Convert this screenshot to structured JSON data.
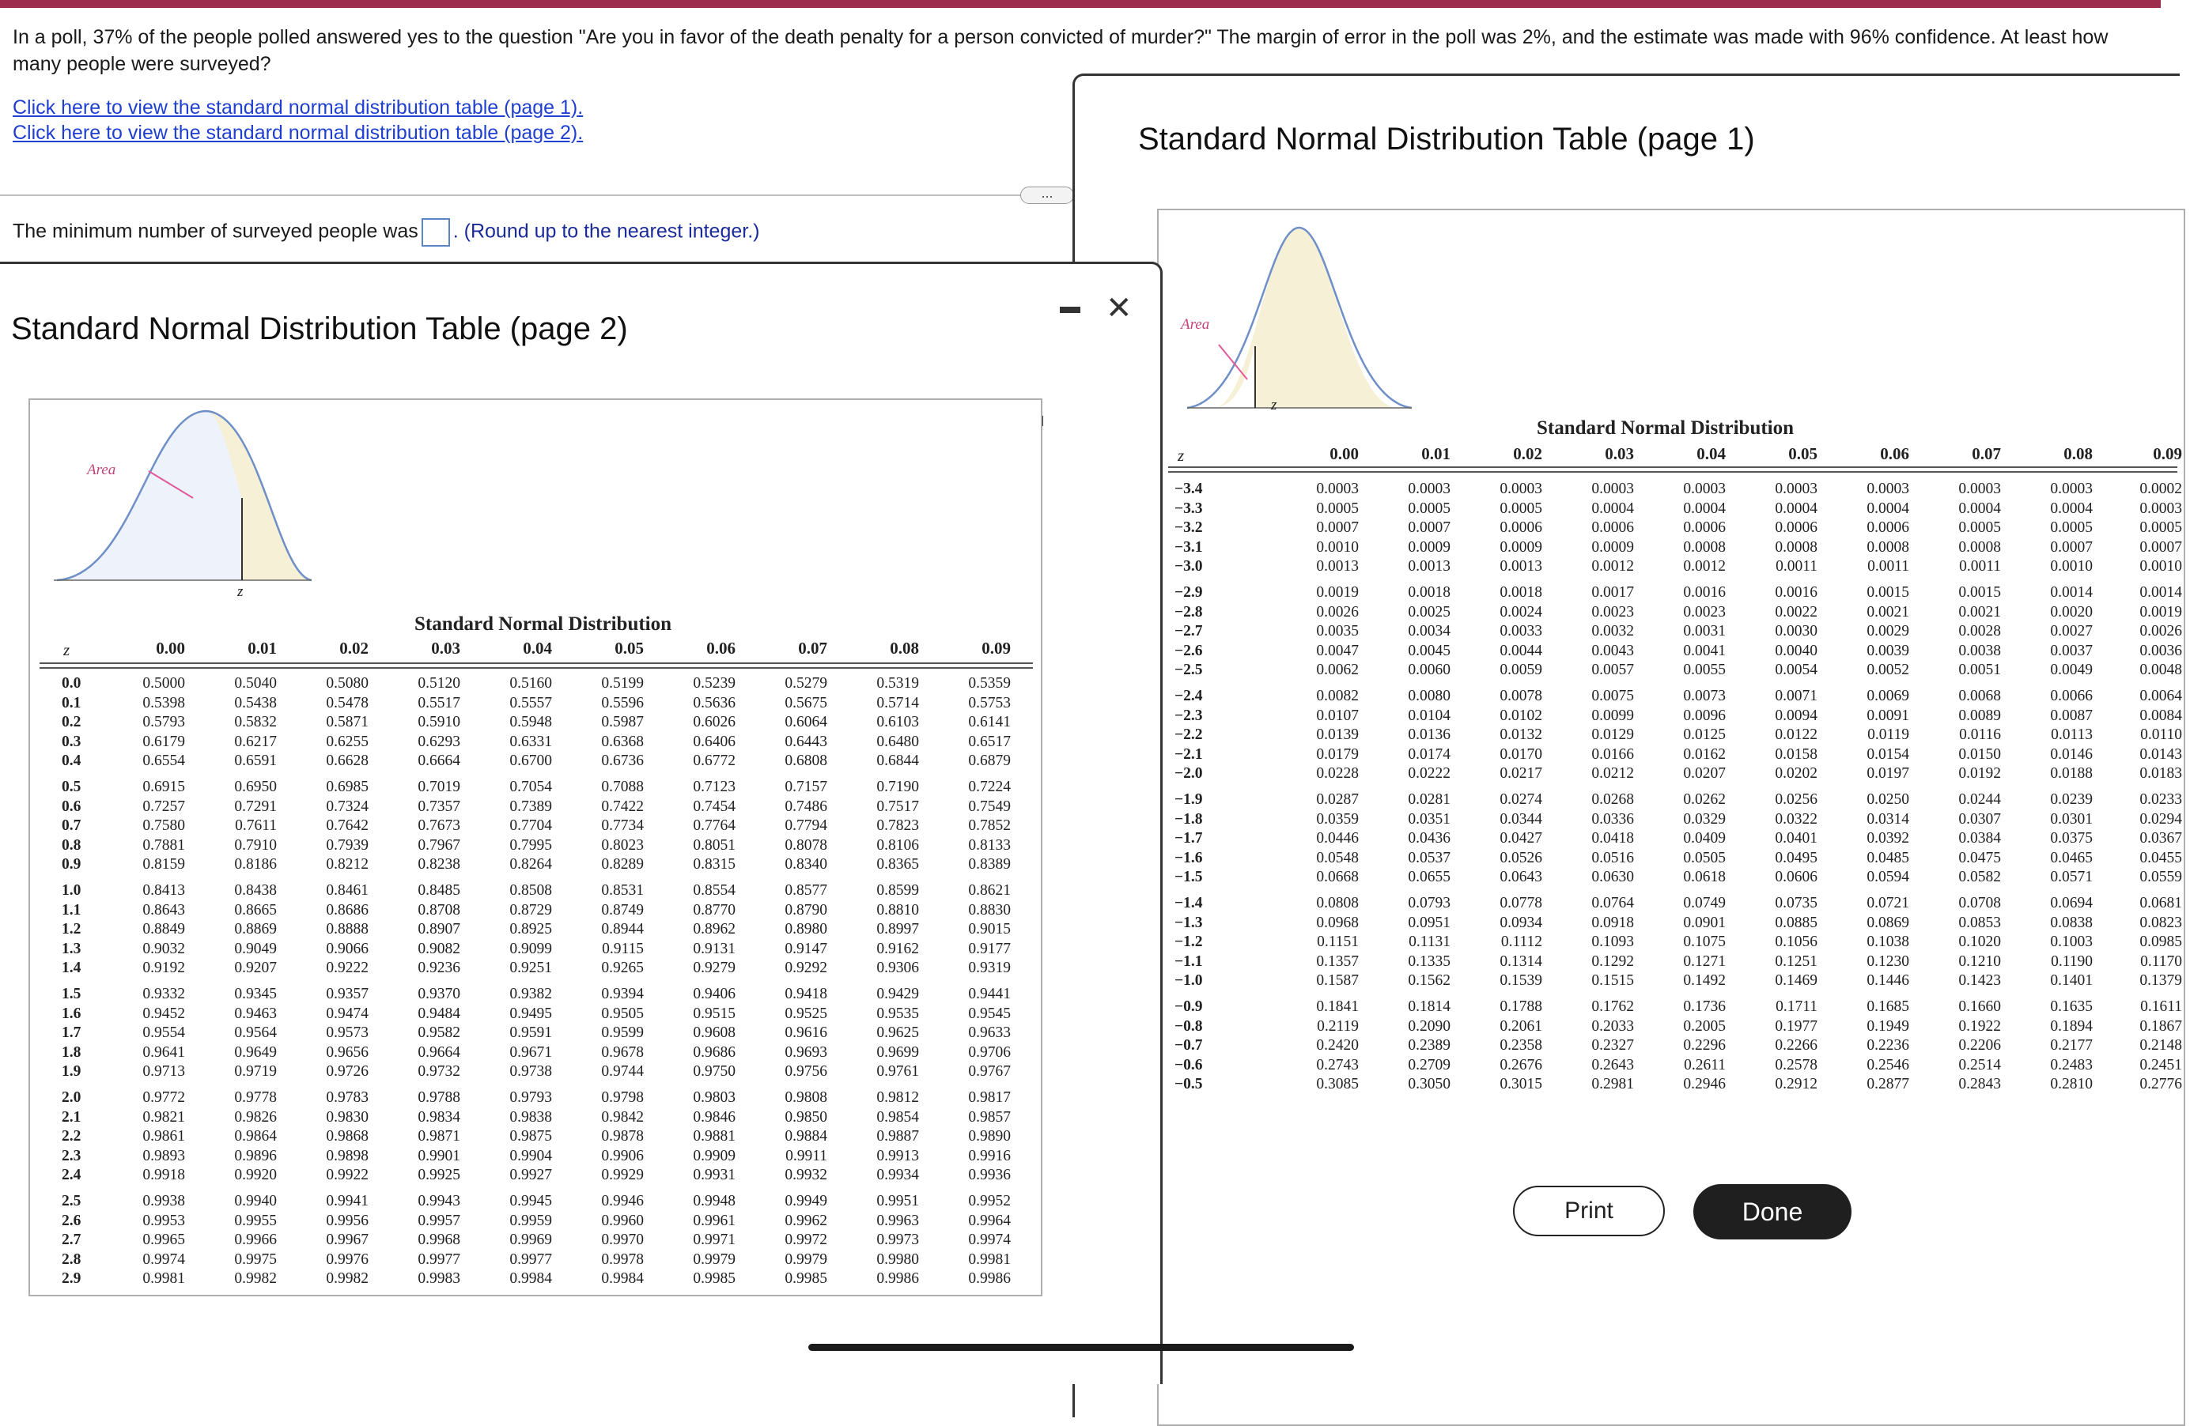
{
  "question": {
    "text": "In a poll, 37% of the people polled answered yes to the question \"Are you in favor of the death penalty for a person convicted of murder?\" The margin of error in the poll was 2%, and the estimate was made with 96% confidence. At least how many people were surveyed?",
    "link1": "Click here to view the standard normal distribution table (page 1).",
    "link2": "Click here to view the standard normal distribution table (page 2).",
    "more_label": "...",
    "answer_prefix": "The minimum number of surveyed people was",
    "answer_value": "",
    "answer_suffix": ". (Round up to the nearest integer.)"
  },
  "page1": {
    "window_title": "Standard Normal Distribution Table (page 1)",
    "table_title": "Standard Normal Distribution",
    "area_label": "Area",
    "z_label": "z",
    "col_headers": [
      "0.00",
      "0.01",
      "0.02",
      "0.03",
      "0.04",
      "0.05",
      "0.06",
      "0.07",
      "0.08",
      "0.09"
    ],
    "groups": [
      [
        {
          "z": "−3.4",
          "v": [
            "0.0003",
            "0.0003",
            "0.0003",
            "0.0003",
            "0.0003",
            "0.0003",
            "0.0003",
            "0.0003",
            "0.0003",
            "0.0002"
          ]
        },
        {
          "z": "−3.3",
          "v": [
            "0.0005",
            "0.0005",
            "0.0005",
            "0.0004",
            "0.0004",
            "0.0004",
            "0.0004",
            "0.0004",
            "0.0004",
            "0.0003"
          ]
        },
        {
          "z": "−3.2",
          "v": [
            "0.0007",
            "0.0007",
            "0.0006",
            "0.0006",
            "0.0006",
            "0.0006",
            "0.0006",
            "0.0005",
            "0.0005",
            "0.0005"
          ]
        },
        {
          "z": "−3.1",
          "v": [
            "0.0010",
            "0.0009",
            "0.0009",
            "0.0009",
            "0.0008",
            "0.0008",
            "0.0008",
            "0.0008",
            "0.0007",
            "0.0007"
          ]
        },
        {
          "z": "−3.0",
          "v": [
            "0.0013",
            "0.0013",
            "0.0013",
            "0.0012",
            "0.0012",
            "0.0011",
            "0.0011",
            "0.0011",
            "0.0010",
            "0.0010"
          ]
        }
      ],
      [
        {
          "z": "−2.9",
          "v": [
            "0.0019",
            "0.0018",
            "0.0018",
            "0.0017",
            "0.0016",
            "0.0016",
            "0.0015",
            "0.0015",
            "0.0014",
            "0.0014"
          ]
        },
        {
          "z": "−2.8",
          "v": [
            "0.0026",
            "0.0025",
            "0.0024",
            "0.0023",
            "0.0023",
            "0.0022",
            "0.0021",
            "0.0021",
            "0.0020",
            "0.0019"
          ]
        },
        {
          "z": "−2.7",
          "v": [
            "0.0035",
            "0.0034",
            "0.0033",
            "0.0032",
            "0.0031",
            "0.0030",
            "0.0029",
            "0.0028",
            "0.0027",
            "0.0026"
          ]
        },
        {
          "z": "−2.6",
          "v": [
            "0.0047",
            "0.0045",
            "0.0044",
            "0.0043",
            "0.0041",
            "0.0040",
            "0.0039",
            "0.0038",
            "0.0037",
            "0.0036"
          ]
        },
        {
          "z": "−2.5",
          "v": [
            "0.0062",
            "0.0060",
            "0.0059",
            "0.0057",
            "0.0055",
            "0.0054",
            "0.0052",
            "0.0051",
            "0.0049",
            "0.0048"
          ]
        }
      ],
      [
        {
          "z": "−2.4",
          "v": [
            "0.0082",
            "0.0080",
            "0.0078",
            "0.0075",
            "0.0073",
            "0.0071",
            "0.0069",
            "0.0068",
            "0.0066",
            "0.0064"
          ]
        },
        {
          "z": "−2.3",
          "v": [
            "0.0107",
            "0.0104",
            "0.0102",
            "0.0099",
            "0.0096",
            "0.0094",
            "0.0091",
            "0.0089",
            "0.0087",
            "0.0084"
          ]
        },
        {
          "z": "−2.2",
          "v": [
            "0.0139",
            "0.0136",
            "0.0132",
            "0.0129",
            "0.0125",
            "0.0122",
            "0.0119",
            "0.0116",
            "0.0113",
            "0.0110"
          ]
        },
        {
          "z": "−2.1",
          "v": [
            "0.0179",
            "0.0174",
            "0.0170",
            "0.0166",
            "0.0162",
            "0.0158",
            "0.0154",
            "0.0150",
            "0.0146",
            "0.0143"
          ]
        },
        {
          "z": "−2.0",
          "v": [
            "0.0228",
            "0.0222",
            "0.0217",
            "0.0212",
            "0.0207",
            "0.0202",
            "0.0197",
            "0.0192",
            "0.0188",
            "0.0183"
          ]
        }
      ],
      [
        {
          "z": "−1.9",
          "v": [
            "0.0287",
            "0.0281",
            "0.0274",
            "0.0268",
            "0.0262",
            "0.0256",
            "0.0250",
            "0.0244",
            "0.0239",
            "0.0233"
          ]
        },
        {
          "z": "−1.8",
          "v": [
            "0.0359",
            "0.0351",
            "0.0344",
            "0.0336",
            "0.0329",
            "0.0322",
            "0.0314",
            "0.0307",
            "0.0301",
            "0.0294"
          ]
        },
        {
          "z": "−1.7",
          "v": [
            "0.0446",
            "0.0436",
            "0.0427",
            "0.0418",
            "0.0409",
            "0.0401",
            "0.0392",
            "0.0384",
            "0.0375",
            "0.0367"
          ]
        },
        {
          "z": "−1.6",
          "v": [
            "0.0548",
            "0.0537",
            "0.0526",
            "0.0516",
            "0.0505",
            "0.0495",
            "0.0485",
            "0.0475",
            "0.0465",
            "0.0455"
          ]
        },
        {
          "z": "−1.5",
          "v": [
            "0.0668",
            "0.0655",
            "0.0643",
            "0.0630",
            "0.0618",
            "0.0606",
            "0.0594",
            "0.0582",
            "0.0571",
            "0.0559"
          ]
        }
      ],
      [
        {
          "z": "−1.4",
          "v": [
            "0.0808",
            "0.0793",
            "0.0778",
            "0.0764",
            "0.0749",
            "0.0735",
            "0.0721",
            "0.0708",
            "0.0694",
            "0.0681"
          ]
        },
        {
          "z": "−1.3",
          "v": [
            "0.0968",
            "0.0951",
            "0.0934",
            "0.0918",
            "0.0901",
            "0.0885",
            "0.0869",
            "0.0853",
            "0.0838",
            "0.0823"
          ]
        },
        {
          "z": "−1.2",
          "v": [
            "0.1151",
            "0.1131",
            "0.1112",
            "0.1093",
            "0.1075",
            "0.1056",
            "0.1038",
            "0.1020",
            "0.1003",
            "0.0985"
          ]
        },
        {
          "z": "−1.1",
          "v": [
            "0.1357",
            "0.1335",
            "0.1314",
            "0.1292",
            "0.1271",
            "0.1251",
            "0.1230",
            "0.1210",
            "0.1190",
            "0.1170"
          ]
        },
        {
          "z": "−1.0",
          "v": [
            "0.1587",
            "0.1562",
            "0.1539",
            "0.1515",
            "0.1492",
            "0.1469",
            "0.1446",
            "0.1423",
            "0.1401",
            "0.1379"
          ]
        }
      ],
      [
        {
          "z": "−0.9",
          "v": [
            "0.1841",
            "0.1814",
            "0.1788",
            "0.1762",
            "0.1736",
            "0.1711",
            "0.1685",
            "0.1660",
            "0.1635",
            "0.1611"
          ]
        },
        {
          "z": "−0.8",
          "v": [
            "0.2119",
            "0.2090",
            "0.2061",
            "0.2033",
            "0.2005",
            "0.1977",
            "0.1949",
            "0.1922",
            "0.1894",
            "0.1867"
          ]
        },
        {
          "z": "−0.7",
          "v": [
            "0.2420",
            "0.2389",
            "0.2358",
            "0.2327",
            "0.2296",
            "0.2266",
            "0.2236",
            "0.2206",
            "0.2177",
            "0.2148"
          ]
        },
        {
          "z": "−0.6",
          "v": [
            "0.2743",
            "0.2709",
            "0.2676",
            "0.2643",
            "0.2611",
            "0.2578",
            "0.2546",
            "0.2514",
            "0.2483",
            "0.2451"
          ]
        },
        {
          "z": "−0.5",
          "v": [
            "0.3085",
            "0.3050",
            "0.3015",
            "0.2981",
            "0.2946",
            "0.2912",
            "0.2877",
            "0.2843",
            "0.2810",
            "0.2776"
          ]
        }
      ]
    ],
    "print_label": "Print",
    "done_label": "Done"
  },
  "page2": {
    "window_title": "Standard Normal Distribution Table (page 2)",
    "table_title": "Standard Normal Distribution",
    "area_label": "Area",
    "z_label": "z",
    "col_headers": [
      "0.00",
      "0.01",
      "0.02",
      "0.03",
      "0.04",
      "0.05",
      "0.06",
      "0.07",
      "0.08",
      "0.09"
    ],
    "groups": [
      [
        {
          "z": "0.0",
          "v": [
            "0.5000",
            "0.5040",
            "0.5080",
            "0.5120",
            "0.5160",
            "0.5199",
            "0.5239",
            "0.5279",
            "0.5319",
            "0.5359"
          ]
        },
        {
          "z": "0.1",
          "v": [
            "0.5398",
            "0.5438",
            "0.5478",
            "0.5517",
            "0.5557",
            "0.5596",
            "0.5636",
            "0.5675",
            "0.5714",
            "0.5753"
          ]
        },
        {
          "z": "0.2",
          "v": [
            "0.5793",
            "0.5832",
            "0.5871",
            "0.5910",
            "0.5948",
            "0.5987",
            "0.6026",
            "0.6064",
            "0.6103",
            "0.6141"
          ]
        },
        {
          "z": "0.3",
          "v": [
            "0.6179",
            "0.6217",
            "0.6255",
            "0.6293",
            "0.6331",
            "0.6368",
            "0.6406",
            "0.6443",
            "0.6480",
            "0.6517"
          ]
        },
        {
          "z": "0.4",
          "v": [
            "0.6554",
            "0.6591",
            "0.6628",
            "0.6664",
            "0.6700",
            "0.6736",
            "0.6772",
            "0.6808",
            "0.6844",
            "0.6879"
          ]
        }
      ],
      [
        {
          "z": "0.5",
          "v": [
            "0.6915",
            "0.6950",
            "0.6985",
            "0.7019",
            "0.7054",
            "0.7088",
            "0.7123",
            "0.7157",
            "0.7190",
            "0.7224"
          ]
        },
        {
          "z": "0.6",
          "v": [
            "0.7257",
            "0.7291",
            "0.7324",
            "0.7357",
            "0.7389",
            "0.7422",
            "0.7454",
            "0.7486",
            "0.7517",
            "0.7549"
          ]
        },
        {
          "z": "0.7",
          "v": [
            "0.7580",
            "0.7611",
            "0.7642",
            "0.7673",
            "0.7704",
            "0.7734",
            "0.7764",
            "0.7794",
            "0.7823",
            "0.7852"
          ]
        },
        {
          "z": "0.8",
          "v": [
            "0.7881",
            "0.7910",
            "0.7939",
            "0.7967",
            "0.7995",
            "0.8023",
            "0.8051",
            "0.8078",
            "0.8106",
            "0.8133"
          ]
        },
        {
          "z": "0.9",
          "v": [
            "0.8159",
            "0.8186",
            "0.8212",
            "0.8238",
            "0.8264",
            "0.8289",
            "0.8315",
            "0.8340",
            "0.8365",
            "0.8389"
          ]
        }
      ],
      [
        {
          "z": "1.0",
          "v": [
            "0.8413",
            "0.8438",
            "0.8461",
            "0.8485",
            "0.8508",
            "0.8531",
            "0.8554",
            "0.8577",
            "0.8599",
            "0.8621"
          ]
        },
        {
          "z": "1.1",
          "v": [
            "0.8643",
            "0.8665",
            "0.8686",
            "0.8708",
            "0.8729",
            "0.8749",
            "0.8770",
            "0.8790",
            "0.8810",
            "0.8830"
          ]
        },
        {
          "z": "1.2",
          "v": [
            "0.8849",
            "0.8869",
            "0.8888",
            "0.8907",
            "0.8925",
            "0.8944",
            "0.8962",
            "0.8980",
            "0.8997",
            "0.9015"
          ]
        },
        {
          "z": "1.3",
          "v": [
            "0.9032",
            "0.9049",
            "0.9066",
            "0.9082",
            "0.9099",
            "0.9115",
            "0.9131",
            "0.9147",
            "0.9162",
            "0.9177"
          ]
        },
        {
          "z": "1.4",
          "v": [
            "0.9192",
            "0.9207",
            "0.9222",
            "0.9236",
            "0.9251",
            "0.9265",
            "0.9279",
            "0.9292",
            "0.9306",
            "0.9319"
          ]
        }
      ],
      [
        {
          "z": "1.5",
          "v": [
            "0.9332",
            "0.9345",
            "0.9357",
            "0.9370",
            "0.9382",
            "0.9394",
            "0.9406",
            "0.9418",
            "0.9429",
            "0.9441"
          ]
        },
        {
          "z": "1.6",
          "v": [
            "0.9452",
            "0.9463",
            "0.9474",
            "0.9484",
            "0.9495",
            "0.9505",
            "0.9515",
            "0.9525",
            "0.9535",
            "0.9545"
          ]
        },
        {
          "z": "1.7",
          "v": [
            "0.9554",
            "0.9564",
            "0.9573",
            "0.9582",
            "0.9591",
            "0.9599",
            "0.9608",
            "0.9616",
            "0.9625",
            "0.9633"
          ]
        },
        {
          "z": "1.8",
          "v": [
            "0.9641",
            "0.9649",
            "0.9656",
            "0.9664",
            "0.9671",
            "0.9678",
            "0.9686",
            "0.9693",
            "0.9699",
            "0.9706"
          ]
        },
        {
          "z": "1.9",
          "v": [
            "0.9713",
            "0.9719",
            "0.9726",
            "0.9732",
            "0.9738",
            "0.9744",
            "0.9750",
            "0.9756",
            "0.9761",
            "0.9767"
          ]
        }
      ],
      [
        {
          "z": "2.0",
          "v": [
            "0.9772",
            "0.9778",
            "0.9783",
            "0.9788",
            "0.9793",
            "0.9798",
            "0.9803",
            "0.9808",
            "0.9812",
            "0.9817"
          ]
        },
        {
          "z": "2.1",
          "v": [
            "0.9821",
            "0.9826",
            "0.9830",
            "0.9834",
            "0.9838",
            "0.9842",
            "0.9846",
            "0.9850",
            "0.9854",
            "0.9857"
          ]
        },
        {
          "z": "2.2",
          "v": [
            "0.9861",
            "0.9864",
            "0.9868",
            "0.9871",
            "0.9875",
            "0.9878",
            "0.9881",
            "0.9884",
            "0.9887",
            "0.9890"
          ]
        },
        {
          "z": "2.3",
          "v": [
            "0.9893",
            "0.9896",
            "0.9898",
            "0.9901",
            "0.9904",
            "0.9906",
            "0.9909",
            "0.9911",
            "0.9913",
            "0.9916"
          ]
        },
        {
          "z": "2.4",
          "v": [
            "0.9918",
            "0.9920",
            "0.9922",
            "0.9925",
            "0.9927",
            "0.9929",
            "0.9931",
            "0.9932",
            "0.9934",
            "0.9936"
          ]
        }
      ],
      [
        {
          "z": "2.5",
          "v": [
            "0.9938",
            "0.9940",
            "0.9941",
            "0.9943",
            "0.9945",
            "0.9946",
            "0.9948",
            "0.9949",
            "0.9951",
            "0.9952"
          ]
        },
        {
          "z": "2.6",
          "v": [
            "0.9953",
            "0.9955",
            "0.9956",
            "0.9957",
            "0.9959",
            "0.9960",
            "0.9961",
            "0.9962",
            "0.9963",
            "0.9964"
          ]
        },
        {
          "z": "2.7",
          "v": [
            "0.9965",
            "0.9966",
            "0.9967",
            "0.9968",
            "0.9969",
            "0.9970",
            "0.9971",
            "0.9972",
            "0.9973",
            "0.9974"
          ]
        },
        {
          "z": "2.8",
          "v": [
            "0.9974",
            "0.9975",
            "0.9976",
            "0.9977",
            "0.9977",
            "0.9978",
            "0.9979",
            "0.9979",
            "0.9980",
            "0.9981"
          ]
        },
        {
          "z": "2.9",
          "v": [
            "0.9981",
            "0.9982",
            "0.9982",
            "0.9983",
            "0.9984",
            "0.9984",
            "0.9985",
            "0.9985",
            "0.9986",
            "0.9986"
          ]
        }
      ]
    ]
  },
  "colors": {
    "top_bar": "#9c2b4e",
    "link": "#1f3fd0",
    "curve_fill": "#f6f0d6",
    "area_pointer": "#e05a9a"
  },
  "icons": {
    "minimize": "minimize-icon",
    "close": "close-icon",
    "expand": "expand-icon"
  }
}
